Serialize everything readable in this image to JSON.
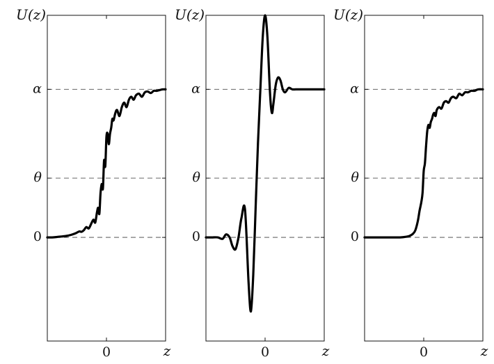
{
  "colors": {
    "curve": "#000000",
    "frame": "#111111",
    "reference_line": "#666666",
    "background": "#ffffff"
  },
  "chart_data": [
    {
      "type": "line",
      "title": "",
      "ylabel": "U(z)",
      "xlabel": "z",
      "x_ticks": [
        {
          "value": 0,
          "label": "0"
        }
      ],
      "y_ticks": [
        {
          "value": 0,
          "label": "0"
        },
        {
          "value": 0.4,
          "label": "θ"
        },
        {
          "value": 1,
          "label": "α"
        }
      ],
      "reference_lines": {
        "style": "dashed",
        "y": [
          0,
          0.4,
          1
        ]
      },
      "xlim": [
        -1,
        1
      ],
      "ylim": [
        -0.7,
        1.5
      ],
      "grid": false,
      "series": [
        {
          "x": [
            -1.0,
            -0.92,
            -0.84,
            -0.76,
            -0.68,
            -0.6,
            -0.52,
            -0.46,
            -0.42,
            -0.38,
            -0.34,
            -0.3,
            -0.26,
            -0.22,
            -0.19,
            -0.16,
            -0.14,
            -0.12,
            -0.1,
            -0.08,
            -0.06,
            -0.04,
            -0.02,
            0.0,
            0.02,
            0.04,
            0.06,
            0.08,
            0.1,
            0.12,
            0.15,
            0.18,
            0.22,
            0.26,
            0.3,
            0.34,
            0.38,
            0.42,
            0.46,
            0.5,
            0.55,
            0.6,
            0.65,
            0.7,
            0.75,
            0.8,
            0.85,
            0.9,
            0.95,
            1.0
          ],
          "y": [
            0.0,
            0.0,
            0.003,
            0.006,
            0.01,
            0.017,
            0.028,
            0.04,
            0.038,
            0.05,
            0.07,
            0.06,
            0.09,
            0.12,
            0.1,
            0.17,
            0.2,
            0.16,
            0.3,
            0.36,
            0.33,
            0.52,
            0.48,
            0.68,
            0.7,
            0.63,
            0.7,
            0.74,
            0.8,
            0.79,
            0.84,
            0.86,
            0.82,
            0.88,
            0.91,
            0.88,
            0.93,
            0.95,
            0.93,
            0.96,
            0.97,
            0.95,
            0.98,
            0.985,
            0.975,
            0.99,
            0.99,
            0.995,
            1.0,
            1.0
          ]
        }
      ]
    },
    {
      "type": "line",
      "title": "",
      "ylabel": "U(z)",
      "xlabel": "z",
      "x_ticks": [
        {
          "value": 0,
          "label": "0"
        }
      ],
      "y_ticks": [
        {
          "value": 0,
          "label": "0"
        },
        {
          "value": 0.4,
          "label": "θ"
        },
        {
          "value": 1,
          "label": "α"
        }
      ],
      "reference_lines": {
        "style": "dashed",
        "y": [
          0,
          0.4,
          1
        ]
      },
      "xlim": [
        -1,
        1
      ],
      "ylim": [
        -0.7,
        1.5
      ],
      "grid": false,
      "series": [
        {
          "x": [
            -1.0,
            -0.9,
            -0.8,
            -0.72,
            -0.66,
            -0.6,
            -0.55,
            -0.5,
            -0.45,
            -0.4,
            -0.34,
            -0.28,
            -0.24,
            -0.2,
            -0.16,
            -0.12,
            -0.08,
            -0.04,
            0.0,
            0.04,
            0.08,
            0.1,
            0.12,
            0.14,
            0.18,
            0.22,
            0.26,
            0.3,
            0.34,
            0.4,
            0.46,
            0.52,
            0.58,
            0.65,
            0.72,
            0.8,
            0.9,
            1.0
          ],
          "y": [
            0.0,
            0.0,
            0.0,
            -0.01,
            0.02,
            0.0,
            -0.06,
            -0.08,
            0.0,
            0.13,
            0.19,
            -0.3,
            -0.5,
            -0.25,
            0.2,
            0.64,
            1.0,
            1.35,
            1.5,
            1.35,
            1.0,
            0.88,
            0.84,
            0.9,
            1.03,
            1.08,
            1.06,
            1.0,
            0.98,
            1.01,
            1.0,
            1.0,
            1.0,
            1.0,
            1.0,
            1.0,
            1.0,
            1.0
          ]
        }
      ]
    },
    {
      "type": "line",
      "title": "",
      "ylabel": "U(z)",
      "xlabel": "z",
      "x_ticks": [
        {
          "value": 0,
          "label": "0"
        }
      ],
      "y_ticks": [
        {
          "value": 0,
          "label": "0"
        },
        {
          "value": 0.4,
          "label": "θ"
        },
        {
          "value": 1,
          "label": "α"
        }
      ],
      "reference_lines": {
        "style": "dashed",
        "y": [
          0,
          0.4,
          1
        ]
      },
      "xlim": [
        -1,
        1
      ],
      "ylim": [
        -0.7,
        1.5
      ],
      "grid": false,
      "series": [
        {
          "x": [
            -1.0,
            -0.8,
            -0.6,
            -0.4,
            -0.3,
            -0.24,
            -0.18,
            -0.14,
            -0.1,
            -0.07,
            -0.04,
            -0.02,
            0.0,
            0.02,
            0.04,
            0.06,
            0.08,
            0.1,
            0.12,
            0.14,
            0.16,
            0.18,
            0.2,
            0.22,
            0.26,
            0.3,
            0.34,
            0.38,
            0.42,
            0.46,
            0.5,
            0.55,
            0.6,
            0.65,
            0.7,
            0.75,
            0.8,
            0.86,
            0.92,
            1.0
          ],
          "y": [
            0.0,
            0.0,
            0.0,
            0.0,
            0.004,
            0.01,
            0.025,
            0.05,
            0.11,
            0.18,
            0.24,
            0.3,
            0.45,
            0.5,
            0.62,
            0.72,
            0.76,
            0.74,
            0.78,
            0.8,
            0.83,
            0.84,
            0.82,
            0.86,
            0.88,
            0.87,
            0.91,
            0.92,
            0.91,
            0.94,
            0.95,
            0.94,
            0.97,
            0.96,
            0.98,
            0.98,
            0.99,
            0.99,
            1.0,
            1.0
          ]
        }
      ]
    }
  ]
}
